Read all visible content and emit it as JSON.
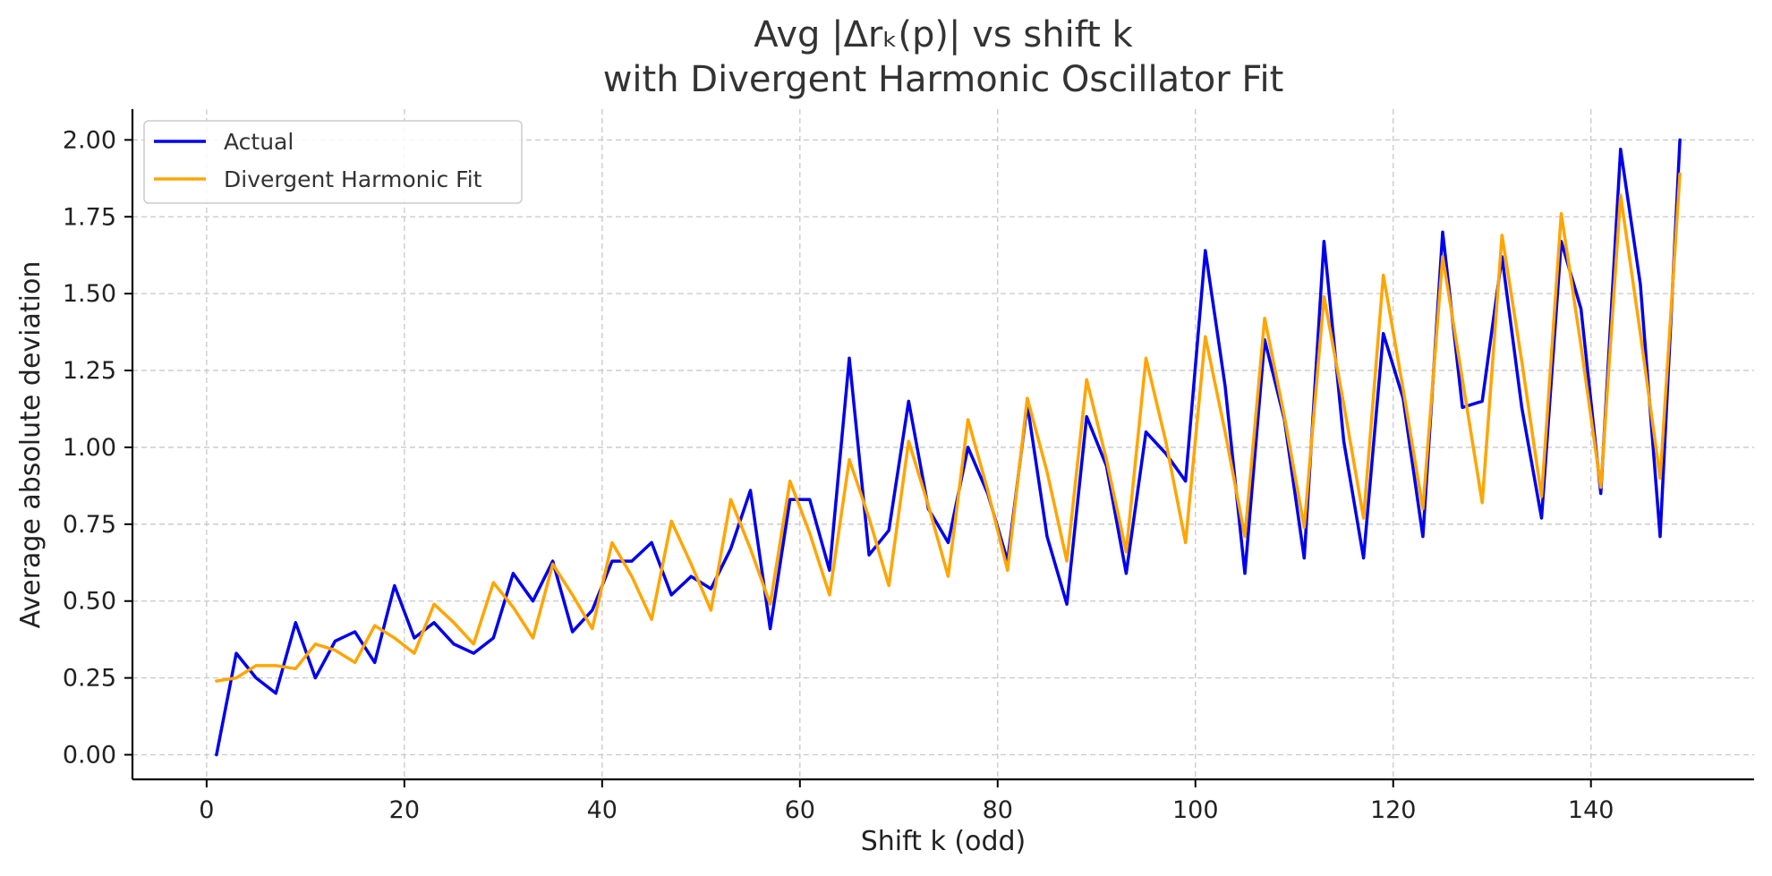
{
  "chart_data": {
    "type": "line",
    "title": "Avg |Δrₖ(p)| vs shift k",
    "subtitle": "with Divergent Harmonic Oscillator Fit",
    "xlabel": "Shift k (odd)",
    "ylabel": "Average absolute deviation",
    "xlim": [
      -7.5,
      156.5
    ],
    "ylim": [
      -0.08,
      2.1
    ],
    "xticks": [
      0,
      20,
      40,
      60,
      80,
      100,
      120,
      140
    ],
    "yticks": [
      0.0,
      0.25,
      0.5,
      0.75,
      1.0,
      1.25,
      1.5,
      1.75,
      2.0
    ],
    "ytick_labels": [
      "0.00",
      "0.25",
      "0.50",
      "0.75",
      "1.00",
      "1.25",
      "1.50",
      "1.75",
      "2.00"
    ],
    "grid": true,
    "legend_position": "top-left",
    "x": [
      1,
      3,
      5,
      7,
      9,
      11,
      13,
      15,
      17,
      19,
      21,
      23,
      25,
      27,
      29,
      31,
      33,
      35,
      37,
      39,
      41,
      43,
      45,
      47,
      49,
      51,
      53,
      55,
      57,
      59,
      61,
      63,
      65,
      67,
      69,
      71,
      73,
      75,
      77,
      79,
      81,
      83,
      85,
      87,
      89,
      91,
      93,
      95,
      97,
      99,
      101,
      103,
      105,
      107,
      109,
      111,
      113,
      115,
      117,
      119,
      121,
      123,
      125,
      127,
      129,
      131,
      133,
      135,
      137,
      139,
      141,
      143,
      145,
      147,
      149
    ],
    "series": [
      {
        "name": "Actual",
        "color": "#0000ee",
        "values": [
          0.0,
          0.33,
          0.25,
          0.2,
          0.43,
          0.25,
          0.37,
          0.4,
          0.3,
          0.55,
          0.38,
          0.43,
          0.36,
          0.33,
          0.38,
          0.59,
          0.5,
          0.63,
          0.4,
          0.47,
          0.63,
          0.63,
          0.69,
          0.52,
          0.58,
          0.54,
          0.67,
          0.86,
          0.41,
          0.83,
          0.83,
          0.6,
          1.29,
          0.65,
          0.73,
          1.15,
          0.8,
          0.69,
          1.0,
          0.85,
          0.63,
          1.14,
          0.71,
          0.49,
          1.1,
          0.94,
          0.59,
          1.05,
          0.98,
          0.89,
          1.64,
          1.2,
          0.59,
          1.35,
          1.09,
          0.64,
          1.67,
          1.02,
          0.64,
          1.37,
          1.16,
          0.71,
          1.7,
          1.13,
          1.15,
          1.62,
          1.13,
          0.77,
          1.67,
          1.45,
          0.85,
          1.97,
          1.53,
          0.71,
          2.0
        ]
      },
      {
        "name": "Divergent Harmonic Fit",
        "color": "#ffa500",
        "values": [
          0.24,
          0.25,
          0.29,
          0.29,
          0.28,
          0.36,
          0.34,
          0.3,
          0.42,
          0.38,
          0.33,
          0.49,
          0.43,
          0.36,
          0.56,
          0.48,
          0.38,
          0.62,
          0.52,
          0.41,
          0.69,
          0.58,
          0.44,
          0.76,
          0.62,
          0.47,
          0.83,
          0.67,
          0.49,
          0.89,
          0.72,
          0.52,
          0.96,
          0.77,
          0.55,
          1.02,
          0.81,
          0.58,
          1.09,
          0.86,
          0.6,
          1.16,
          0.92,
          0.63,
          1.22,
          0.96,
          0.66,
          1.29,
          1.02,
          0.69,
          1.36,
          1.05,
          0.71,
          1.42,
          1.1,
          0.74,
          1.49,
          1.14,
          0.77,
          1.56,
          1.19,
          0.8,
          1.62,
          1.22,
          0.82,
          1.69,
          1.28,
          0.84,
          1.76,
          1.33,
          0.87,
          1.82,
          1.37,
          0.9,
          1.89
        ]
      }
    ]
  }
}
